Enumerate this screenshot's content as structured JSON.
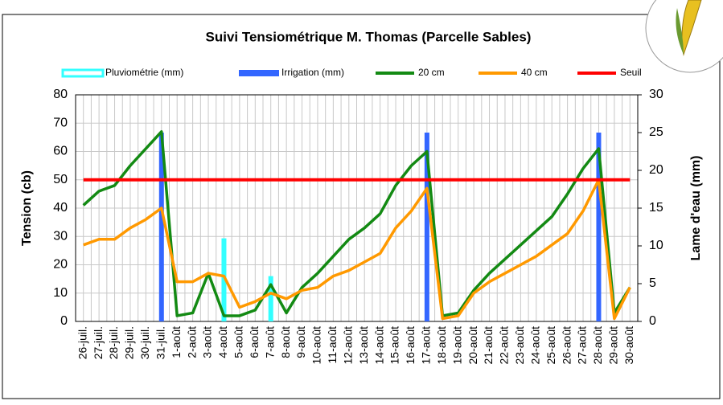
{
  "chart_data": {
    "type": "line",
    "title": "Suivi Tensiométrique M. Thomas (Parcelle Sables)",
    "y_label": "Tension (cb)",
    "y2_label": "Lame d'eau (mm)",
    "categories": [
      "26-juil.",
      "27-juil.",
      "28-juil.",
      "29-juil.",
      "30-juil.",
      "31-juil.",
      "1-août",
      "2-août",
      "3-août",
      "4-août",
      "5-août",
      "6-août",
      "7-août",
      "8-août",
      "9-août",
      "10-août",
      "11-août",
      "12-août",
      "13-août",
      "14-août",
      "15-août",
      "16-août",
      "17-août",
      "18-août",
      "19-août",
      "20-août",
      "21-août",
      "22-août",
      "23-août",
      "24-août",
      "25-août",
      "26-août",
      "27-août",
      "28-août",
      "29-août",
      "30-août"
    ],
    "ylim": [
      0,
      80
    ],
    "yticks": [
      0,
      10,
      20,
      30,
      40,
      50,
      60,
      70,
      80
    ],
    "y2lim": [
      0,
      30
    ],
    "y2ticks": [
      0,
      5,
      10,
      15,
      20,
      25,
      30
    ],
    "grid": true,
    "series": [
      {
        "name": "Pluviométrie (mm)",
        "type": "bar",
        "axis": "y2",
        "color": "#33ffff",
        "values": [
          null,
          null,
          null,
          null,
          null,
          null,
          null,
          null,
          null,
          11,
          null,
          null,
          6,
          null,
          null,
          null,
          null,
          null,
          null,
          null,
          null,
          null,
          null,
          null,
          null,
          null,
          null,
          null,
          null,
          null,
          null,
          null,
          null,
          null,
          null,
          null
        ]
      },
      {
        "name": "Irrigation (mm)",
        "type": "bar",
        "axis": "y2",
        "color": "#3366ff",
        "values": [
          null,
          null,
          null,
          null,
          null,
          25,
          null,
          null,
          null,
          null,
          null,
          null,
          null,
          null,
          null,
          null,
          null,
          null,
          null,
          null,
          null,
          null,
          25,
          null,
          null,
          null,
          null,
          null,
          null,
          null,
          null,
          null,
          null,
          25,
          null,
          null
        ]
      },
      {
        "name": "20 cm",
        "type": "line",
        "color": "#138a13",
        "values": [
          41,
          46,
          48,
          55,
          61,
          67,
          2,
          3,
          17,
          2,
          2,
          4,
          13,
          3,
          12,
          17,
          23,
          29,
          33,
          38,
          48,
          55,
          60,
          2,
          3,
          11,
          17,
          22,
          27,
          32,
          37,
          45,
          54,
          61,
          3,
          12
        ]
      },
      {
        "name": "40 cm",
        "type": "line",
        "color": "#ff9900",
        "values": [
          27,
          29,
          29,
          33,
          36,
          40,
          14,
          14,
          17,
          16,
          5,
          7,
          10,
          8,
          11,
          12,
          16,
          18,
          21,
          24,
          33,
          39,
          47,
          1,
          2,
          10,
          14,
          17,
          20,
          23,
          27,
          31,
          39,
          50,
          1,
          12
        ]
      },
      {
        "name": "Seuil",
        "type": "line",
        "color": "#ff0000",
        "values": [
          50,
          50,
          50,
          50,
          50,
          50,
          50,
          50,
          50,
          50,
          50,
          50,
          50,
          50,
          50,
          50,
          50,
          50,
          50,
          50,
          50,
          50,
          50,
          50,
          50,
          50,
          50,
          50,
          50,
          50,
          50,
          50,
          50,
          50,
          50,
          50
        ]
      }
    ]
  }
}
